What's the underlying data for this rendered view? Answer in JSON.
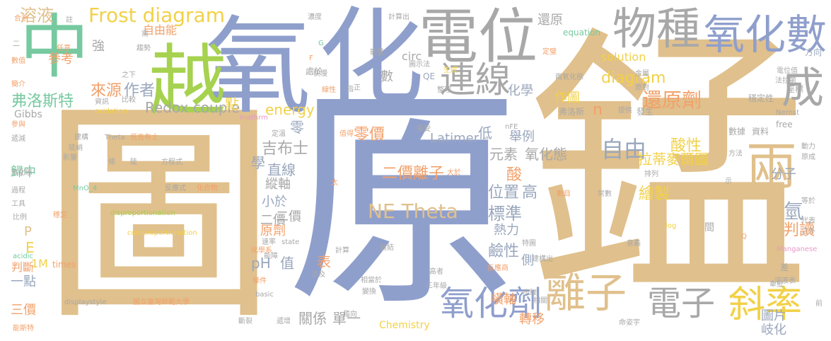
{
  "palette": {
    "tan": "#e0c08c",
    "blue": "#8f9fcc",
    "grey": "#a8a8a8",
    "green": "#77c9a0",
    "lime": "#a6d24f",
    "orange": "#f2a06a",
    "pink": "#e79ac8",
    "yellow": "#f2d148",
    "slate": "#9aa7bd"
  },
  "words": [
    "錳",
    "原",
    "圖",
    "氧",
    "化",
    "電位",
    "中",
    "越",
    "物種",
    "氧化數",
    "兩",
    "成",
    "連線",
    "離子",
    "斜率",
    "電子",
    "氧化劑",
    "還原劑",
    "自由",
    "Frost diagram",
    "溶液",
    "NE Theta",
    "二價離子",
    "標準",
    "diagram",
    "判讀",
    "氫",
    "酸性",
    "分子",
    "拉蒂麥爾圖",
    "Redox couple",
    "弗洛斯特",
    "作者",
    "來源",
    "零價",
    "元素",
    "氧化態",
    "直線",
    "鹼性",
    "位置",
    "高",
    "酸",
    "繪製",
    "吉布士",
    "Latimer",
    "單一",
    "關係",
    "轉移",
    "化學",
    "作圖",
    "pH",
    "值",
    "energy",
    "n",
    "學",
    "縱軸",
    "熱力",
    "側",
    "Chemistry",
    "橫軸",
    "表",
    "solution",
    "circ",
    "參考",
    "數",
    "強",
    "自由能",
    "還原",
    "三價",
    "歸中",
    "一點",
    "判斷",
    "E",
    "P",
    "1M",
    "times",
    "Gibbs",
    "原劑",
    "小於",
    "二價",
    "圖片",
    "岐化",
    "低",
    "舉例",
    "零",
    "點",
    "equation",
    "方向",
    "電位值",
    "QE",
    "座標",
    "穩定性",
    "Nernst",
    "free",
    "資料",
    "數據",
    "發生",
    "提供",
    "弗洛斯",
    "原對",
    "金屬",
    "兩氧化態",
    "生成",
    "快慢",
    "圖示法",
    "能量",
    "指",
    "正",
    "線性",
    "整理",
    "比較",
    "資訊",
    "oxidation",
    "之下",
    "趨勢",
    "任意",
    "數值",
    "簡介",
    "合乎",
    "註",
    "濃度",
    "計算出",
    "處於",
    "需",
    "遞減",
    "參與",
    "氧化態",
    "過程",
    "工具",
    "比例",
    "acidic",
    "能斯特",
    "低吉布士",
    "建構",
    "陡峭",
    "影響",
    "條",
    "陡",
    "方程式",
    "Theta",
    "MnO_4",
    "反應式",
    "化合物",
    "穩定",
    "disproportionation",
    "comproportionation",
    "化學系",
    "速率",
    "state",
    "能障",
    "條件",
    "basic",
    "國立臺灣師範大學",
    "displaystyle",
    "斷裂",
    "遞增",
    "趨向",
    "相當於",
    "變換",
    "涉及",
    "計算",
    "鍵結",
    "值得",
    "接受",
    "定溫",
    "mathrm",
    "nFE",
    "太",
    "大於",
    "反應商",
    "高者",
    "三年級",
    "步驟",
    "相關",
    "特圖",
    "建構出",
    "數目",
    "常數",
    "意義",
    "命姿宇",
    "間",
    "log",
    "Q",
    "Manganese",
    "差",
    "牽扯",
    "前",
    "溶液表",
    "代表",
    "之外",
    "等於",
    "示",
    "原成",
    "動力",
    "方法",
    "排列",
    "二",
    "G",
    "F",
    "定璧",
    "法拉第",
    "二價"
  ]
}
